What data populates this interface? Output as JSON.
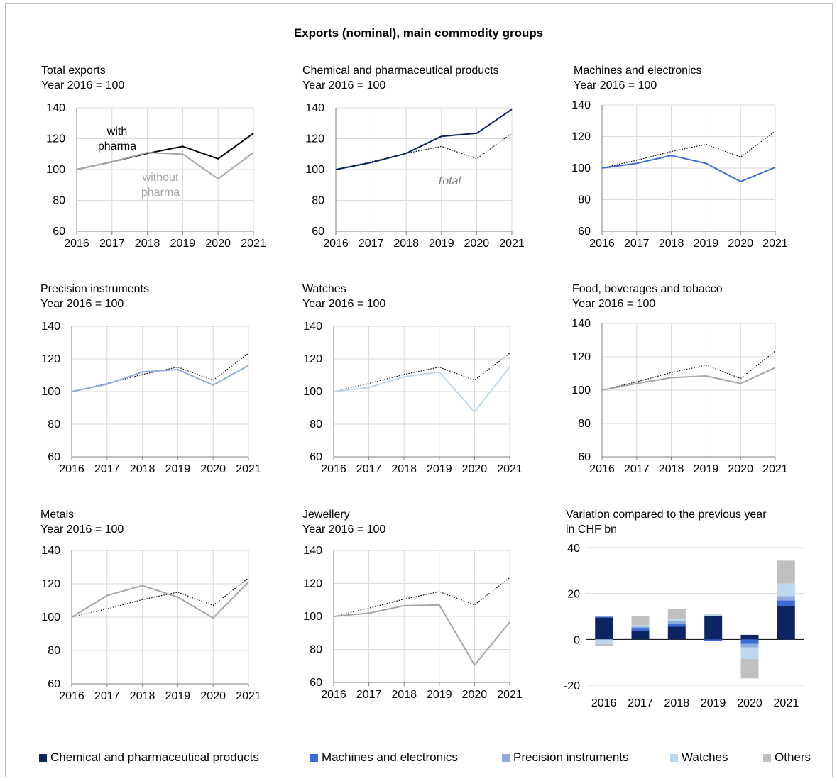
{
  "title": "Exports (nominal), main commodity groups",
  "colors": {
    "total": "#000000",
    "without_pharma": "#a6a6a6",
    "chemical": "#0c2461",
    "machines": "#3d6bd6",
    "precision": "#8faadc",
    "watches": "#bdd7ee",
    "others": "#bfbfbf",
    "grid": "#d9d9d9",
    "axis": "#7f7f7f"
  },
  "panels": [
    {
      "title": "Total exports",
      "subtitle": "Year 2016 = 100",
      "annotations": [
        {
          "text": "with"
        },
        {
          "text": "pharma"
        },
        {
          "text": "without"
        },
        {
          "text": "pharma"
        }
      ]
    },
    {
      "title": "Chemical and pharmaceutical products",
      "subtitle": "Year 2016 = 100",
      "annotations": [
        {
          "text": "Total"
        }
      ]
    },
    {
      "title": "Machines and electronics",
      "subtitle": "Year 2016 = 100",
      "annotations": []
    },
    {
      "title": "Precision instruments",
      "subtitle": "Year 2016 = 100",
      "annotations": []
    },
    {
      "title": "Watches",
      "subtitle": "Year 2016 = 100",
      "annotations": []
    },
    {
      "title": "Food, beverages and tobacco",
      "subtitle": "Year 2016 = 100",
      "annotations": []
    },
    {
      "title": "Metals",
      "subtitle": "Year 2016 = 100",
      "annotations": []
    },
    {
      "title": "Jewellery",
      "subtitle": "Year 2016 = 100",
      "annotations": []
    },
    {
      "title": "Variation compared to the previous year",
      "subtitle": "in CHF bn",
      "annotations": []
    }
  ],
  "legend": [
    {
      "label": "Chemical and pharmaceutical products",
      "color": "#0c2461"
    },
    {
      "label": "Machines and electronics",
      "color": "#3d6bd6"
    },
    {
      "label": "Precision instruments",
      "color": "#8faadc"
    },
    {
      "label": "Watches",
      "color": "#bdd7ee"
    },
    {
      "label": "Others",
      "color": "#bfbfbf"
    }
  ],
  "chart_data": [
    {
      "type": "line",
      "x": [
        "2016",
        "2017",
        "2018",
        "2019",
        "2020",
        "2021"
      ],
      "ylim": [
        60,
        140
      ],
      "yticks": [
        60,
        80,
        100,
        120,
        140
      ],
      "series": [
        {
          "key": "total",
          "values": [
            100,
            105,
            110.5,
            115,
            107,
            123.5
          ],
          "color": "#000000",
          "style": "solid"
        },
        {
          "key": "without_pharma",
          "values": [
            100,
            105,
            111,
            110,
            94,
            111
          ],
          "color": "#a6a6a6",
          "style": "solid"
        }
      ]
    },
    {
      "type": "line",
      "x": [
        "2016",
        "2017",
        "2018",
        "2019",
        "2020",
        "2021"
      ],
      "ylim": [
        60,
        140
      ],
      "yticks": [
        60,
        80,
        100,
        120,
        140
      ],
      "series": [
        {
          "key": "chemical",
          "values": [
            100,
            104.5,
            110.5,
            121.5,
            123.5,
            139
          ],
          "color": "#0c2461",
          "style": "solid"
        },
        {
          "key": "total",
          "values": [
            100,
            105,
            110.5,
            115,
            107,
            123.5
          ],
          "color": "#000000",
          "style": "dotted"
        }
      ]
    },
    {
      "type": "line",
      "x": [
        "2016",
        "2017",
        "2018",
        "2019",
        "2020",
        "2021"
      ],
      "ylim": [
        60,
        140
      ],
      "yticks": [
        60,
        80,
        100,
        120,
        140
      ],
      "series": [
        {
          "key": "machines",
          "values": [
            100,
            103,
            108,
            103,
            91.5,
            100.5
          ],
          "color": "#3d6bd6",
          "style": "solid"
        },
        {
          "key": "total",
          "values": [
            100,
            105,
            110.5,
            115,
            107,
            123.5
          ],
          "color": "#000000",
          "style": "dotted"
        }
      ]
    },
    {
      "type": "line",
      "x": [
        "2016",
        "2017",
        "2018",
        "2019",
        "2020",
        "2021"
      ],
      "ylim": [
        60,
        140
      ],
      "yticks": [
        60,
        80,
        100,
        120,
        140
      ],
      "series": [
        {
          "key": "precision",
          "values": [
            100,
            104.5,
            112,
            113.5,
            104,
            116
          ],
          "color": "#8faadc",
          "style": "solid"
        },
        {
          "key": "total",
          "values": [
            100,
            105,
            110.5,
            115,
            107,
            123.5
          ],
          "color": "#000000",
          "style": "dotted"
        }
      ]
    },
    {
      "type": "line",
      "x": [
        "2016",
        "2017",
        "2018",
        "2019",
        "2020",
        "2021"
      ],
      "ylim": [
        60,
        140
      ],
      "yticks": [
        60,
        80,
        100,
        120,
        140
      ],
      "series": [
        {
          "key": "watches",
          "values": [
            100,
            102.5,
            109,
            112,
            87.5,
            115
          ],
          "color": "#bdd7ee",
          "style": "solid"
        },
        {
          "key": "total",
          "values": [
            100,
            105,
            110.5,
            115,
            107,
            123.5
          ],
          "color": "#000000",
          "style": "dotted"
        }
      ]
    },
    {
      "type": "line",
      "x": [
        "2016",
        "2017",
        "2018",
        "2019",
        "2020",
        "2021"
      ],
      "ylim": [
        60,
        140
      ],
      "yticks": [
        60,
        80,
        100,
        120,
        140
      ],
      "series": [
        {
          "key": "food",
          "values": [
            100,
            104,
            107.5,
            108.5,
            104,
            113.5
          ],
          "color": "#a6a6a6",
          "style": "solid"
        },
        {
          "key": "total",
          "values": [
            100,
            105,
            110.5,
            115,
            107,
            123.5
          ],
          "color": "#000000",
          "style": "dotted"
        }
      ]
    },
    {
      "type": "line",
      "x": [
        "2016",
        "2017",
        "2018",
        "2019",
        "2020",
        "2021"
      ],
      "ylim": [
        60,
        140
      ],
      "yticks": [
        60,
        80,
        100,
        120,
        140
      ],
      "series": [
        {
          "key": "metals",
          "values": [
            100,
            113,
            119,
            112,
            99.5,
            121
          ],
          "color": "#a6a6a6",
          "style": "solid"
        },
        {
          "key": "total",
          "values": [
            100,
            105,
            110.5,
            115,
            107,
            123.5
          ],
          "color": "#000000",
          "style": "dotted"
        }
      ]
    },
    {
      "type": "line",
      "x": [
        "2016",
        "2017",
        "2018",
        "2019",
        "2020",
        "2021"
      ],
      "ylim": [
        60,
        140
      ],
      "yticks": [
        60,
        80,
        100,
        120,
        140
      ],
      "series": [
        {
          "key": "jewellery",
          "values": [
            100,
            102,
            106.5,
            107,
            70.5,
            96.5
          ],
          "color": "#a6a6a6",
          "style": "solid"
        },
        {
          "key": "total",
          "values": [
            100,
            105,
            110.5,
            115,
            107,
            123.5
          ],
          "color": "#000000",
          "style": "dotted"
        }
      ]
    },
    {
      "type": "bar",
      "stacked": true,
      "categories": [
        "2016",
        "2017",
        "2018",
        "2019",
        "2020",
        "2021"
      ],
      "ylim": [
        -20,
        40
      ],
      "yticks": [
        -20,
        0,
        20,
        40
      ],
      "series": [
        {
          "name": "Chemical and pharmaceutical products",
          "values": [
            9.5,
            3.5,
            5.5,
            10,
            2,
            14.5
          ],
          "color": "#0c2461"
        },
        {
          "name": "Machines and electronics",
          "values": [
            0.3,
            1.2,
            1.4,
            -0.8,
            -2,
            2.5
          ],
          "color": "#3d6bd6"
        },
        {
          "name": "Precision instruments",
          "values": [
            0.3,
            0.8,
            1,
            0.2,
            -1.5,
            1.8
          ],
          "color": "#8faadc"
        },
        {
          "name": "Watches",
          "values": [
            -2,
            0.7,
            1.2,
            0.6,
            -5,
            5.5
          ],
          "color": "#bdd7ee"
        },
        {
          "name": "Others",
          "values": [
            -0.8,
            4,
            4,
            0.3,
            -8.5,
            10
          ],
          "color": "#bfbfbf"
        }
      ]
    }
  ]
}
